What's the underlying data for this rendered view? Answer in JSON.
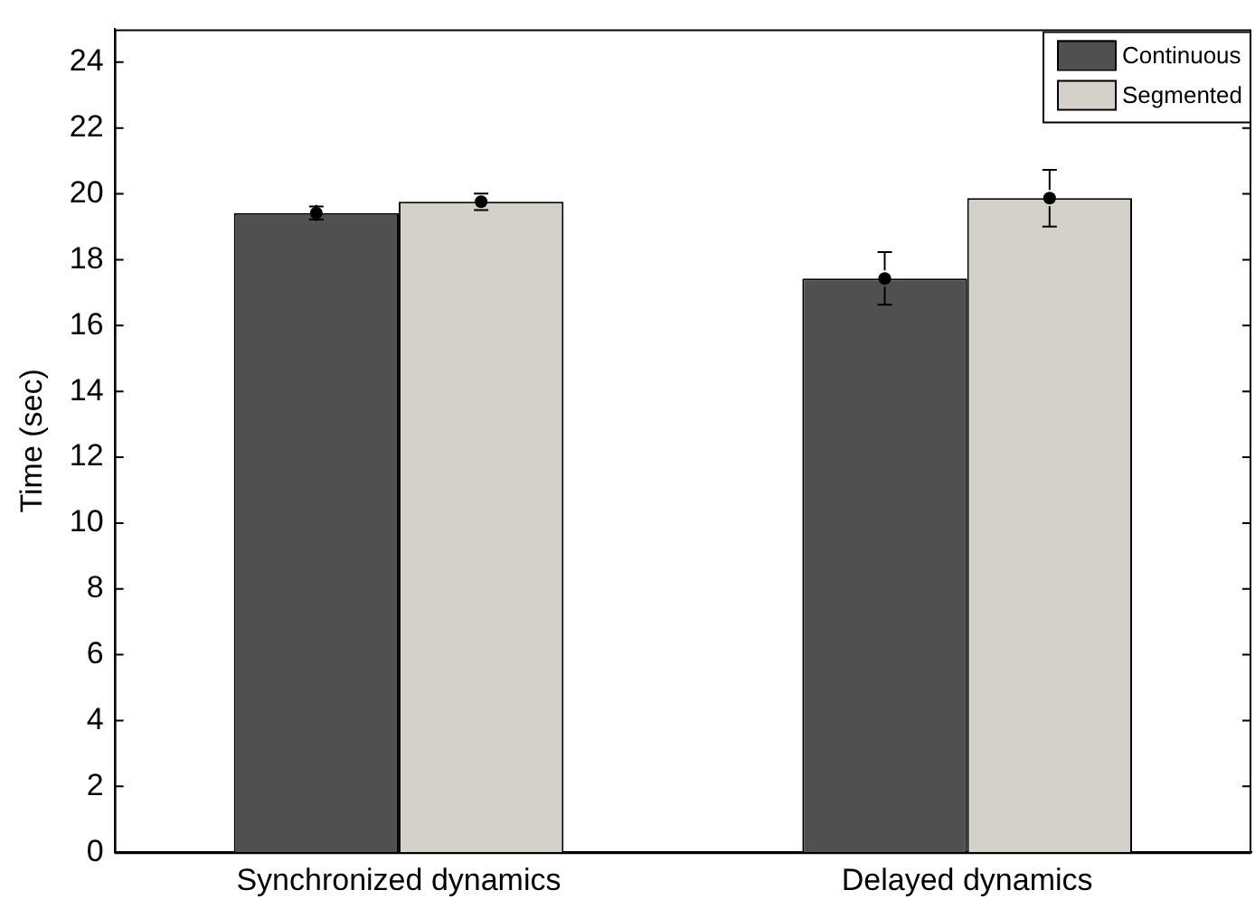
{
  "chart_data": {
    "type": "bar",
    "ylabel": "Time (sec)",
    "categories": [
      "Synchronized dynamics",
      "Delayed dynamics"
    ],
    "series": [
      {
        "name": "Continuous",
        "color": "#505050",
        "values": [
          19.42,
          17.43
        ],
        "errors": [
          0.2,
          0.8
        ]
      },
      {
        "name": "Segmented",
        "color": "#d4d0ca",
        "values": [
          19.76,
          19.87
        ],
        "errors": [
          0.25,
          0.86
        ]
      },
      {
        "type": "scatter",
        "color": "#000000",
        "x": [
          "Synchronized dynamics",
          "Delayed dynamics"
        ],
        "values": [
          19.42,
          17.43
        ]
      },
      {
        "type": "scatter",
        "color": "#000000",
        "x": [
          "Synchronized dynamics",
          "Delayed dynamics"
        ],
        "values": [
          19.76,
          19.87
        ]
      }
    ],
    "ylim": [
      0,
      25
    ],
    "yticks": [
      0,
      2,
      4,
      6,
      8,
      10,
      12,
      14,
      16,
      18,
      20,
      22,
      24
    ],
    "grid": false,
    "legend": "top right"
  }
}
